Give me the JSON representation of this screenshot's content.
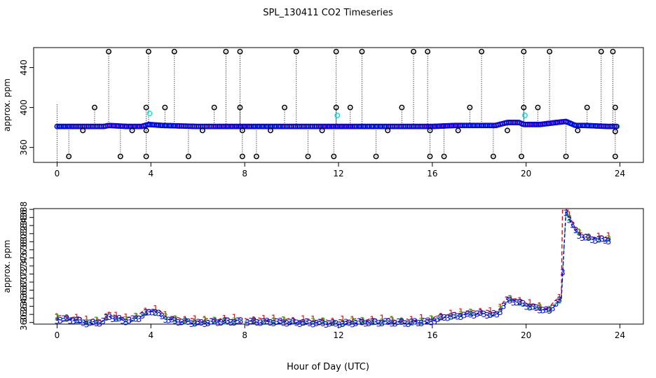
{
  "title": "SPL_130411  CO2 Timeseries",
  "xlabel": "Hour of Day (UTC)",
  "colors": {
    "black": "#000000",
    "blue": "#0000ff",
    "red": "#ff0000",
    "green": "#00cc00",
    "cyan": "#00e5e5"
  },
  "chart_data": [
    {
      "type": "scatter",
      "title": "SPL_130411  CO2 Timeseries",
      "xlabel": "",
      "ylabel": "approx. ppm",
      "xlim": [
        -1,
        25
      ],
      "ylim": [
        345,
        460
      ],
      "xticks": [
        0,
        4,
        8,
        12,
        16,
        20,
        24
      ],
      "yticks": [
        360,
        400,
        440
      ],
      "baseline_series": {
        "x_start": 0.0,
        "x_step": 0.1,
        "values_by_hour": [
          [
            0,
            381
          ],
          [
            2,
            381
          ],
          [
            2.2,
            382
          ],
          [
            3,
            381
          ],
          [
            3.6,
            381
          ],
          [
            3.9,
            383
          ],
          [
            4.5,
            382
          ],
          [
            6,
            381
          ],
          [
            8,
            381
          ],
          [
            12,
            381
          ],
          [
            16,
            381
          ],
          [
            17,
            382
          ],
          [
            18,
            382
          ],
          [
            18.7,
            382
          ],
          [
            19.2,
            385
          ],
          [
            19.7,
            385
          ],
          [
            19.9,
            383
          ],
          [
            20.6,
            383
          ],
          [
            21.3,
            385
          ],
          [
            21.7,
            386
          ],
          [
            22.1,
            382
          ],
          [
            22.5,
            382
          ],
          [
            23.5,
            381
          ]
        ]
      },
      "outliers_high": [
        2.2,
        3.9,
        5.0,
        7.2,
        7.8,
        10.2,
        11.9,
        13.0,
        15.2,
        15.8,
        18.1,
        19.9,
        21.0,
        23.2,
        23.7
      ],
      "outliers_low": [
        0.5,
        2.7,
        3.8,
        5.6,
        7.9,
        8.5,
        10.7,
        11.8,
        13.6,
        15.9,
        16.5,
        18.6,
        19.8,
        21.7,
        23.8
      ],
      "mid_high_points": [
        [
          1.6,
          400
        ],
        [
          3.8,
          400
        ],
        [
          4.6,
          400
        ],
        [
          6.7,
          400
        ],
        [
          7.8,
          400
        ],
        [
          9.7,
          400
        ],
        [
          11.9,
          400
        ],
        [
          12.5,
          400
        ],
        [
          14.7,
          400
        ],
        [
          17.6,
          400
        ],
        [
          19.9,
          400
        ],
        [
          20.5,
          400
        ],
        [
          22.6,
          400
        ],
        [
          23.8,
          400
        ]
      ],
      "mid_low_points": [
        [
          1.1,
          377
        ],
        [
          3.2,
          377
        ],
        [
          3.8,
          377
        ],
        [
          6.2,
          377
        ],
        [
          7.9,
          377
        ],
        [
          9.1,
          377
        ],
        [
          11.3,
          377
        ],
        [
          14.1,
          377
        ],
        [
          15.9,
          377
        ],
        [
          17.1,
          377
        ],
        [
          19.2,
          377
        ],
        [
          22.2,
          377
        ],
        [
          23.8,
          376
        ]
      ],
      "cyan_points": [
        [
          3.95,
          394
        ],
        [
          11.95,
          392
        ],
        [
          19.95,
          392
        ]
      ]
    },
    {
      "type": "line",
      "title": "",
      "xlabel": "Hour of Day (UTC)",
      "ylabel": "approx. ppm",
      "xlim": [
        -1,
        25
      ],
      "ylim": [
        359.6,
        388.2
      ],
      "xticks": [
        0,
        4,
        8,
        12,
        16,
        20,
        24
      ],
      "yticks": [
        360,
        362,
        364,
        366,
        368,
        370,
        372,
        374,
        376,
        378,
        380,
        382,
        384,
        386,
        388
      ],
      "series": [
        {
          "marker": "1",
          "color": "#ff0000"
        },
        {
          "marker": "2",
          "color": "#00cc00"
        },
        {
          "marker": "3",
          "color": "#0000ff"
        }
      ],
      "profile": [
        [
          0.0,
          361.0
        ],
        [
          0.5,
          361.0
        ],
        [
          1.0,
          360.6
        ],
        [
          1.3,
          360.0
        ],
        [
          1.8,
          360.3
        ],
        [
          2.0,
          360.6
        ],
        [
          2.2,
          361.9
        ],
        [
          2.5,
          361.2
        ],
        [
          3.0,
          360.6
        ],
        [
          3.5,
          361.5
        ],
        [
          3.8,
          362.6
        ],
        [
          4.05,
          363.1
        ],
        [
          4.3,
          362.5
        ],
        [
          4.7,
          361.0
        ],
        [
          5.0,
          360.7
        ],
        [
          6.0,
          360.1
        ],
        [
          7.0,
          360.5
        ],
        [
          7.8,
          360.5
        ],
        [
          8.0,
          360.5
        ],
        [
          10.0,
          360.3
        ],
        [
          12.0,
          360.0
        ],
        [
          13.0,
          360.3
        ],
        [
          14.0,
          360.3
        ],
        [
          15.0,
          360.2
        ],
        [
          15.9,
          360.5
        ],
        [
          16.0,
          360.6
        ],
        [
          16.5,
          361.6
        ],
        [
          17.0,
          361.8
        ],
        [
          17.5,
          362.2
        ],
        [
          18.0,
          362.5
        ],
        [
          18.5,
          362.2
        ],
        [
          18.8,
          362.3
        ],
        [
          19.2,
          365.8
        ],
        [
          19.5,
          365.5
        ],
        [
          19.9,
          364.8
        ],
        [
          20.2,
          364.0
        ],
        [
          20.6,
          363.6
        ],
        [
          21.0,
          363.1
        ],
        [
          21.3,
          365.3
        ],
        [
          21.7,
          387.6
        ],
        [
          21.5,
          366.0
        ],
        [
          22.0,
          384.0
        ],
        [
          22.2,
          382.2
        ],
        [
          22.5,
          381.2
        ],
        [
          23.0,
          380.8
        ],
        [
          23.5,
          380.7
        ]
      ]
    }
  ]
}
